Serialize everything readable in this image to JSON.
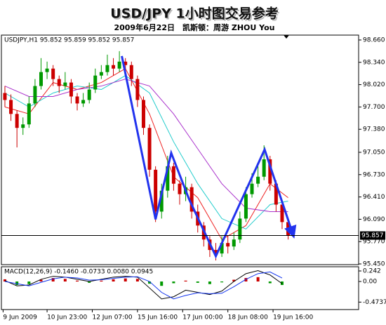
{
  "chart_data": [
    {
      "type": "candlestick",
      "title": "USD/JPY 1小时图交易参考",
      "subtitle": "2009年6月22日　凯斯顿：周游 ZHOU You",
      "label": "USDJPY,H1 95.852 95.859 95.852 95.857",
      "open": [
        97.9,
        97.8,
        97.6,
        97.4,
        97.45,
        97.75,
        98.0,
        98.2,
        98.25,
        98.1,
        98.0,
        98.05,
        97.85,
        97.75,
        97.8,
        97.95,
        98.15,
        98.2,
        98.3,
        98.25,
        98.35,
        98.3,
        98.1,
        97.8,
        97.4,
        96.8,
        96.2,
        96.5,
        96.85,
        96.6,
        96.45,
        96.55,
        96.2,
        96.0,
        95.8,
        95.65,
        95.6,
        95.75,
        95.7,
        95.8,
        96.1,
        96.45,
        96.6,
        96.7,
        96.95,
        96.6,
        96.3,
        96.05
      ],
      "high": [
        98.0,
        97.88,
        97.65,
        97.55,
        97.85,
        98.1,
        98.4,
        98.35,
        98.3,
        98.15,
        98.2,
        98.1,
        97.9,
        97.9,
        98.05,
        98.25,
        98.3,
        98.45,
        98.4,
        98.5,
        98.4,
        98.35,
        98.15,
        97.85,
        97.45,
        96.85,
        96.6,
        97.0,
        96.9,
        96.65,
        96.7,
        96.6,
        96.3,
        96.05,
        95.85,
        95.75,
        95.85,
        95.85,
        95.9,
        96.2,
        96.55,
        96.75,
        96.85,
        97.15,
        97.0,
        96.65,
        96.35,
        96.1
      ],
      "low": [
        97.7,
        97.5,
        97.12,
        97.3,
        97.4,
        97.7,
        97.95,
        98.1,
        98.0,
        97.9,
        97.95,
        97.75,
        97.65,
        97.7,
        97.75,
        97.9,
        98.1,
        98.15,
        98.15,
        98.2,
        98.2,
        98.0,
        97.7,
        97.3,
        96.7,
        96.05,
        96.1,
        96.4,
        96.5,
        96.3,
        96.35,
        96.1,
        95.9,
        95.7,
        95.55,
        95.5,
        95.55,
        95.6,
        95.65,
        95.75,
        96.05,
        96.4,
        96.55,
        96.65,
        96.5,
        96.2,
        95.95,
        95.8
      ],
      "close": [
        97.8,
        97.6,
        97.4,
        97.45,
        97.75,
        98.0,
        98.2,
        98.25,
        98.1,
        98.0,
        98.05,
        97.85,
        97.75,
        97.8,
        97.95,
        98.15,
        98.2,
        98.3,
        98.25,
        98.35,
        98.3,
        98.1,
        97.8,
        97.4,
        96.8,
        96.2,
        96.5,
        96.85,
        96.6,
        96.45,
        96.55,
        96.2,
        96.0,
        95.8,
        95.65,
        95.6,
        95.75,
        95.7,
        95.8,
        96.1,
        96.45,
        96.6,
        96.7,
        96.95,
        96.6,
        96.3,
        96.05,
        95.86
      ],
      "up_color": "#009900",
      "down_color": "#cc0000",
      "lines": [
        {
          "color": "#ee2222",
          "x": [
            0,
            4,
            8,
            12,
            16,
            20,
            24,
            28,
            32,
            36,
            40,
            44,
            47
          ],
          "values": [
            97.7,
            97.6,
            98.05,
            97.95,
            98.05,
            98.25,
            97.6,
            96.7,
            96.4,
            95.8,
            96.0,
            96.6,
            96.4
          ]
        },
        {
          "color": "#22cccc",
          "x": [
            0,
            4,
            8,
            12,
            16,
            20,
            24,
            28,
            32,
            36,
            40,
            44,
            47
          ],
          "values": [
            97.9,
            97.7,
            97.9,
            98.0,
            97.95,
            98.15,
            97.9,
            97.2,
            96.6,
            96.1,
            95.95,
            96.3,
            96.35
          ]
        },
        {
          "color": "#aa33cc",
          "x": [
            0,
            4,
            8,
            12,
            16,
            20,
            24,
            28,
            32,
            36,
            40,
            44,
            47
          ],
          "values": [
            98.0,
            97.85,
            97.85,
            97.95,
            98.0,
            98.1,
            98.0,
            97.6,
            97.1,
            96.6,
            96.25,
            96.2,
            96.2
          ]
        }
      ],
      "zigzag": {
        "color": "#2233ee",
        "x": [
          19.4,
          25,
          27.6,
          30.6,
          35,
          43.1,
          47.7
        ],
        "values": [
          98.43,
          96.09,
          97.04,
          96.37,
          95.56,
          97.09,
          95.9
        ]
      },
      "current_price": 95.857,
      "xlim": [
        -0.58,
        58.7
      ],
      "xticks": [
        {
          "value": -0.3,
          "label": "9 Jun 2009"
        },
        {
          "value": 7,
          "label": "10 Jun 23:00"
        },
        {
          "value": 14.5,
          "label": "12 Jun 07:00"
        },
        {
          "value": 22,
          "label": "15 Jun 16:00"
        },
        {
          "value": 29.5,
          "label": "17 Jun 00:00"
        },
        {
          "value": 37,
          "label": "18 Jun 08:00"
        },
        {
          "value": 44.5,
          "label": "19 Jun 16:00"
        }
      ],
      "ylim": [
        95.44,
        98.73
      ],
      "yticks": [
        {
          "value": 98.66,
          "label": "98.660"
        },
        {
          "value": 98.34,
          "label": "98.340"
        },
        {
          "value": 98.02,
          "label": "98.020"
        },
        {
          "value": 97.7,
          "label": "97.700"
        },
        {
          "value": 97.38,
          "label": "97.380"
        },
        {
          "value": 97.05,
          "label": "97.050"
        },
        {
          "value": 96.73,
          "label": "96.730"
        },
        {
          "value": 96.41,
          "label": "96.410"
        },
        {
          "value": 96.09,
          "label": "96.090"
        },
        {
          "value": 95.77,
          "label": "95.770"
        },
        {
          "value": 95.45,
          "label": "95.450"
        }
      ]
    },
    {
      "type": "macd",
      "label": "MACD(12,26,9) -0.1460 -0.0733 0.0080 0.0945",
      "x": [
        0,
        2,
        4,
        6,
        8,
        10,
        12,
        14,
        16,
        18,
        20,
        22,
        24,
        26,
        28,
        30,
        32,
        34,
        36,
        38,
        40,
        42,
        44,
        46
      ],
      "histogram": [
        0.05,
        -0.08,
        -0.06,
        0.04,
        0.08,
        0.06,
        0.02,
        -0.03,
        0.02,
        0.05,
        0.07,
        0.06,
        -0.05,
        -0.1,
        -0.04,
        0.02,
        -0.03,
        -0.06,
        -0.02,
        0.04,
        0.08,
        0.1,
        -0.04,
        -0.08
      ],
      "up_color": "#cc0000",
      "down_color": "#009900",
      "series": [
        {
          "color": "#000000",
          "values": [
            0.02,
            -0.1,
            -0.08,
            0.05,
            0.12,
            0.1,
            0.05,
            0.0,
            0.05,
            0.1,
            0.12,
            0.1,
            -0.15,
            -0.4,
            -0.35,
            -0.2,
            -0.25,
            -0.3,
            -0.22,
            0.0,
            0.18,
            0.25,
            0.15,
            -0.05
          ]
        },
        {
          "color": "#1133ee",
          "values": [
            0.0,
            -0.05,
            -0.1,
            -0.02,
            0.06,
            0.1,
            0.08,
            0.03,
            0.04,
            0.07,
            0.1,
            0.11,
            0.0,
            -0.25,
            -0.4,
            -0.32,
            -0.26,
            -0.28,
            -0.27,
            -0.12,
            0.05,
            0.18,
            0.22,
            0.08
          ]
        }
      ],
      "xlim": [
        -0.58,
        58.7
      ],
      "ylim": [
        -0.645,
        0.339
      ],
      "yticks": [
        0.242,
        {
          "value": 0,
          "label": "0.00"
        },
        -0.4737
      ]
    }
  ]
}
